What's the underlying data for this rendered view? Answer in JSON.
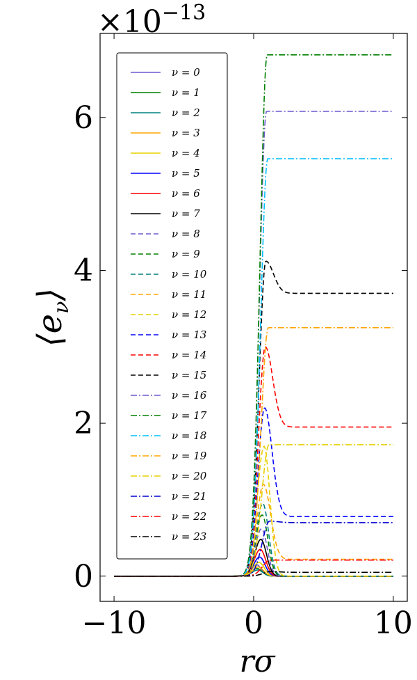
{
  "chart_data": {
    "type": "line",
    "xlabel": "rσ",
    "ylabel": "⟨e_ν⟩",
    "exponent_label": "×10^−13",
    "xlim": [
      -11,
      11
    ],
    "ylim": [
      -0.33,
      7.1
    ],
    "xticks": [
      -10,
      0,
      10
    ],
    "yticks": [
      0,
      2,
      4,
      6
    ],
    "x_tick_labels": [
      "−10",
      "0",
      "10"
    ],
    "y_tick_labels": [
      "0",
      "2",
      "4",
      "6"
    ],
    "grid": false,
    "legend_position": "upper-left",
    "series": [
      {
        "name": "ν = 0",
        "color": "#6a5acd",
        "dash": "solid",
        "peak": 0.15,
        "plateau": 0.0
      },
      {
        "name": "ν = 1",
        "color": "#008000",
        "dash": "solid",
        "peak": 0.1,
        "plateau": 0.0
      },
      {
        "name": "ν = 2",
        "color": "#008080",
        "dash": "solid",
        "peak": 0.08,
        "plateau": 0.0
      },
      {
        "name": "ν = 3",
        "color": "#ffa500",
        "dash": "solid",
        "peak": 0.12,
        "plateau": 0.0
      },
      {
        "name": "ν = 4",
        "color": "#e6d000",
        "dash": "solid",
        "peak": 0.18,
        "plateau": 0.0
      },
      {
        "name": "ν = 5",
        "color": "#0000ff",
        "dash": "solid",
        "peak": 0.25,
        "plateau": 0.0
      },
      {
        "name": "ν = 6",
        "color": "#ff0000",
        "dash": "solid",
        "peak": 0.35,
        "plateau": 0.0
      },
      {
        "name": "ν = 7",
        "color": "#000000",
        "dash": "solid",
        "peak": 0.48,
        "plateau": 0.0
      },
      {
        "name": "ν = 8",
        "color": "#6a5acd",
        "dash": "dashed",
        "peak": 0.62,
        "plateau": 0.0
      },
      {
        "name": "ν = 9",
        "color": "#008000",
        "dash": "dashed",
        "peak": 0.8,
        "plateau": 0.0
      },
      {
        "name": "ν = 10",
        "color": "#008080",
        "dash": "dashed",
        "peak": 0.95,
        "plateau": 0.0
      },
      {
        "name": "ν = 11",
        "color": "#ffa500",
        "dash": "dashed",
        "peak": 1.2,
        "plateau": 0.22
      },
      {
        "name": "ν = 12",
        "color": "#e6d000",
        "dash": "dashed",
        "peak": 1.7,
        "plateau": 0.0
      },
      {
        "name": "ν = 13",
        "color": "#0000ff",
        "dash": "dashed",
        "peak": 2.2,
        "plateau": 0.78
      },
      {
        "name": "ν = 14",
        "color": "#ff0000",
        "dash": "dashed",
        "peak": 3.0,
        "plateau": 1.95
      },
      {
        "name": "ν = 15",
        "color": "#000000",
        "dash": "dashed",
        "peak": 4.12,
        "plateau": 3.7
      },
      {
        "name": "ν = 16",
        "color": "#6a5acd",
        "dash": "dashdot",
        "peak": 6.08,
        "plateau": 6.05
      },
      {
        "name": "ν = 17",
        "color": "#008000",
        "dash": "dashdot",
        "peak": 6.82,
        "plateau": 6.82
      },
      {
        "name": "ν = 18",
        "color": "#00bfff",
        "dash": "dashdot",
        "peak": 5.46,
        "plateau": 5.46
      },
      {
        "name": "ν = 19",
        "color": "#ffa500",
        "dash": "dashdot",
        "peak": 3.25,
        "plateau": 3.25
      },
      {
        "name": "ν = 20",
        "color": "#e6d000",
        "dash": "dashdot",
        "peak": 1.72,
        "plateau": 1.7
      },
      {
        "name": "ν = 21",
        "color": "#0000cd",
        "dash": "dashdot",
        "peak": 0.72,
        "plateau": 0.7
      },
      {
        "name": "ν = 22",
        "color": "#ff0000",
        "dash": "dashdot",
        "peak": 0.21,
        "plateau": 0.21
      },
      {
        "name": "ν = 23",
        "color": "#000000",
        "dash": "dashdot",
        "peak": 0.06,
        "plateau": 0.05
      }
    ]
  }
}
